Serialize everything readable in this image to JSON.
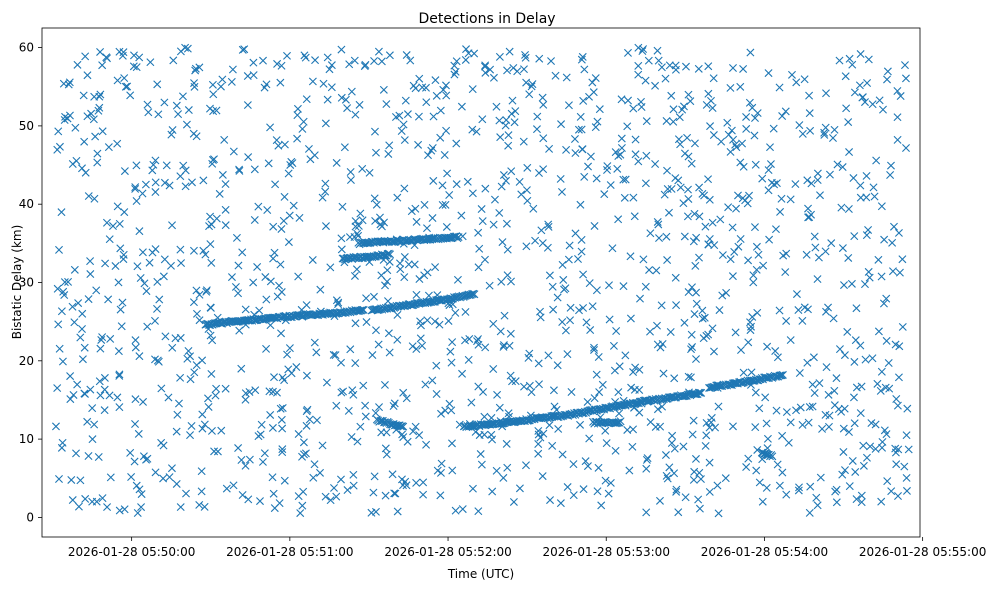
{
  "chart_data": {
    "type": "scatter",
    "title": "Detections in Delay",
    "xlabel": "Time (UTC)",
    "ylabel": "Bistatic Delay (km)",
    "marker": "x",
    "marker_color": "#1f77b4",
    "grid": false,
    "xlim_seconds_after_05_49_00": [
      26,
      359
    ],
    "ylim": [
      -2.5,
      62.5
    ],
    "x_ticks": [
      {
        "value": 60,
        "label": "2026-01-28 05:50:00"
      },
      {
        "value": 120,
        "label": "2026-01-28 05:51:00"
      },
      {
        "value": 180,
        "label": "2026-01-28 05:52:00"
      },
      {
        "value": 240,
        "label": "2026-01-28 05:53:00"
      },
      {
        "value": 300,
        "label": "2026-01-28 05:54:00"
      },
      {
        "value": 360,
        "label": "2026-01-28 05:55:00"
      }
    ],
    "y_ticks": [
      {
        "value": 0,
        "label": "0"
      },
      {
        "value": 10,
        "label": "10"
      },
      {
        "value": 20,
        "label": "20"
      },
      {
        "value": 30,
        "label": "30"
      },
      {
        "value": 40,
        "label": "40"
      },
      {
        "value": 50,
        "label": "50"
      },
      {
        "value": 60,
        "label": "60"
      }
    ],
    "tracks": [
      {
        "name": "track-a",
        "x": [
          88,
          98,
          108,
          118,
          128,
          138,
          148
        ],
        "y": [
          24.6,
          25.0,
          25.3,
          25.6,
          25.9,
          26.1,
          26.5
        ]
      },
      {
        "name": "track-b",
        "x": [
          140,
          150,
          158
        ],
        "y": [
          33.0,
          33.3,
          33.6
        ]
      },
      {
        "name": "track-c",
        "x": [
          151,
          160,
          170,
          180,
          190
        ],
        "y": [
          26.4,
          26.9,
          27.4,
          27.9,
          28.5
        ]
      },
      {
        "name": "track-d",
        "x": [
          153,
          158,
          163
        ],
        "y": [
          12.4,
          12.0,
          11.6
        ]
      },
      {
        "name": "track-e",
        "x": [
          146,
          156,
          166,
          176,
          184
        ],
        "y": [
          35.0,
          35.2,
          35.4,
          35.6,
          35.8
        ]
      },
      {
        "name": "track-f",
        "x": [
          186,
          196,
          206,
          216,
          226,
          236,
          246,
          256,
          266,
          276
        ],
        "y": [
          11.6,
          11.9,
          12.3,
          12.7,
          13.1,
          13.7,
          14.3,
          14.9,
          15.4,
          15.9
        ]
      },
      {
        "name": "track-g",
        "x": [
          279,
          289,
          299,
          307
        ],
        "y": [
          16.6,
          17.1,
          17.7,
          18.2
        ]
      },
      {
        "name": "track-h",
        "x": [
          235,
          240,
          245
        ],
        "y": [
          12.1,
          12.1,
          12.1
        ]
      },
      {
        "name": "track-i",
        "x": [
          299,
          303
        ],
        "y": [
          8.3,
          7.8
        ]
      }
    ],
    "noise": {
      "count": 1500,
      "x_range": [
        31,
        355
      ],
      "y_range": [
        0.5,
        60
      ],
      "seed": 20260128
    }
  }
}
